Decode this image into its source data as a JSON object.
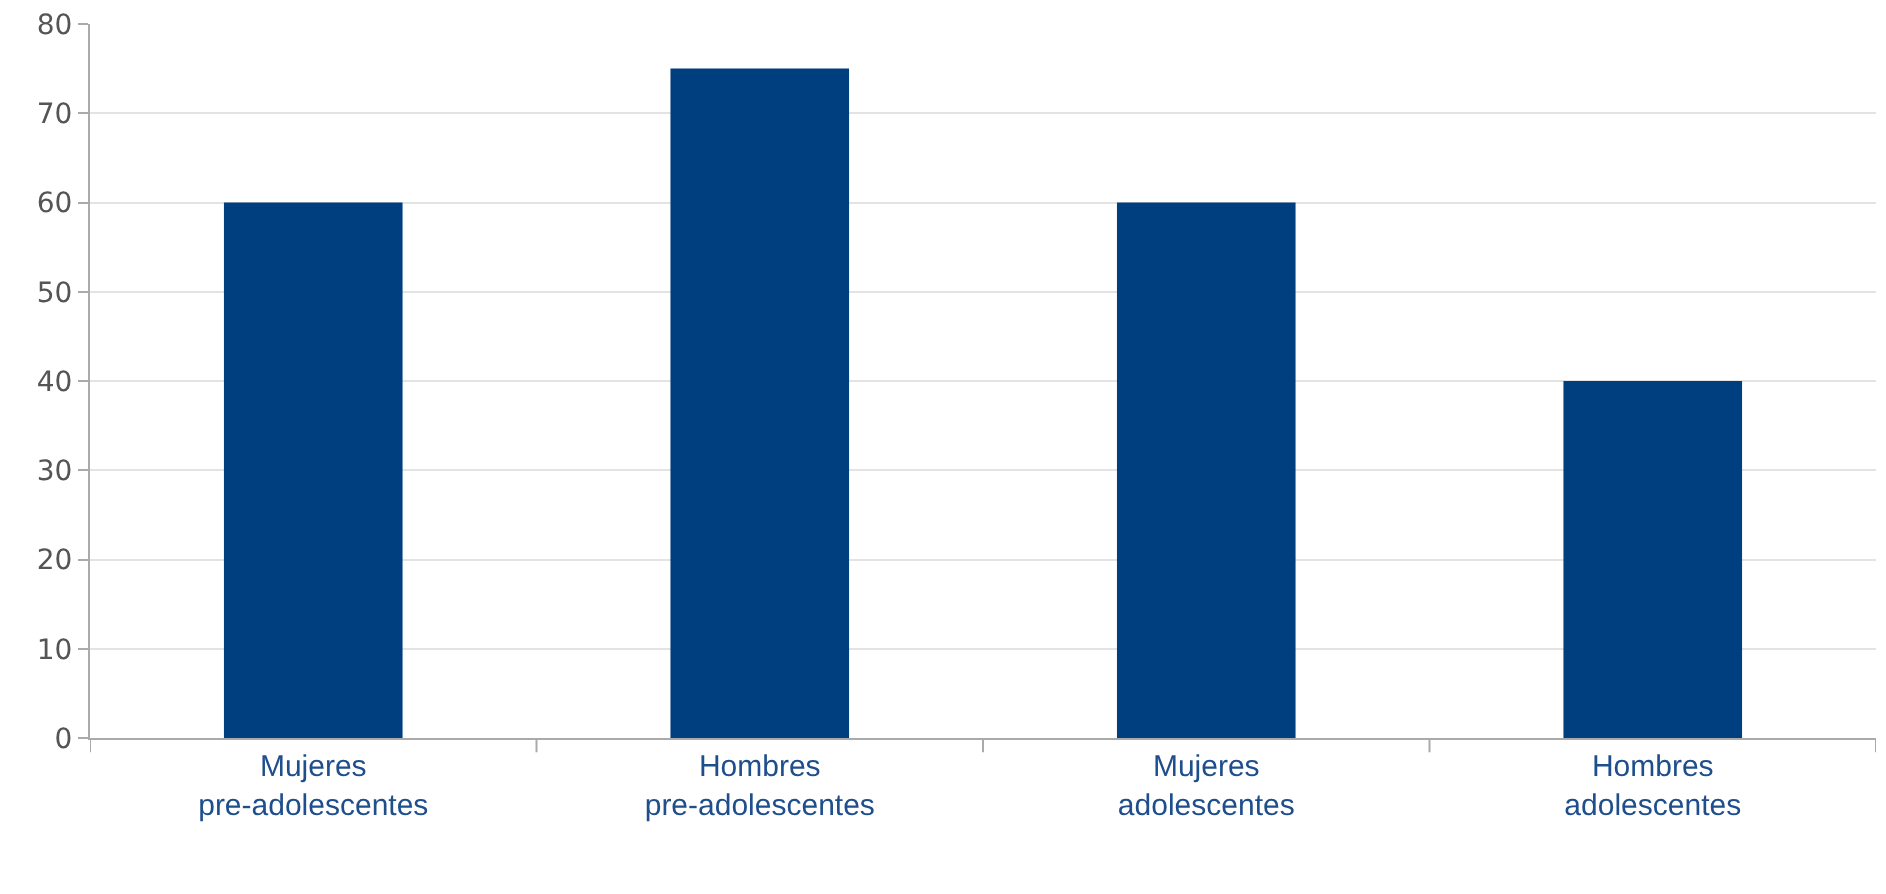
{
  "chart_data": {
    "type": "bar",
    "categories": [
      "Mujeres pre-adolescentes",
      "Hombres pre-adolescentes",
      "Mujeres adolescentes",
      "Hombres adolescentes"
    ],
    "values": [
      60,
      75,
      60,
      40
    ],
    "color": "#003f7f",
    "ylim": [
      0,
      80
    ],
    "yticks": [
      0,
      10,
      20,
      30,
      40,
      50,
      60,
      70,
      80
    ],
    "grid": "y"
  }
}
